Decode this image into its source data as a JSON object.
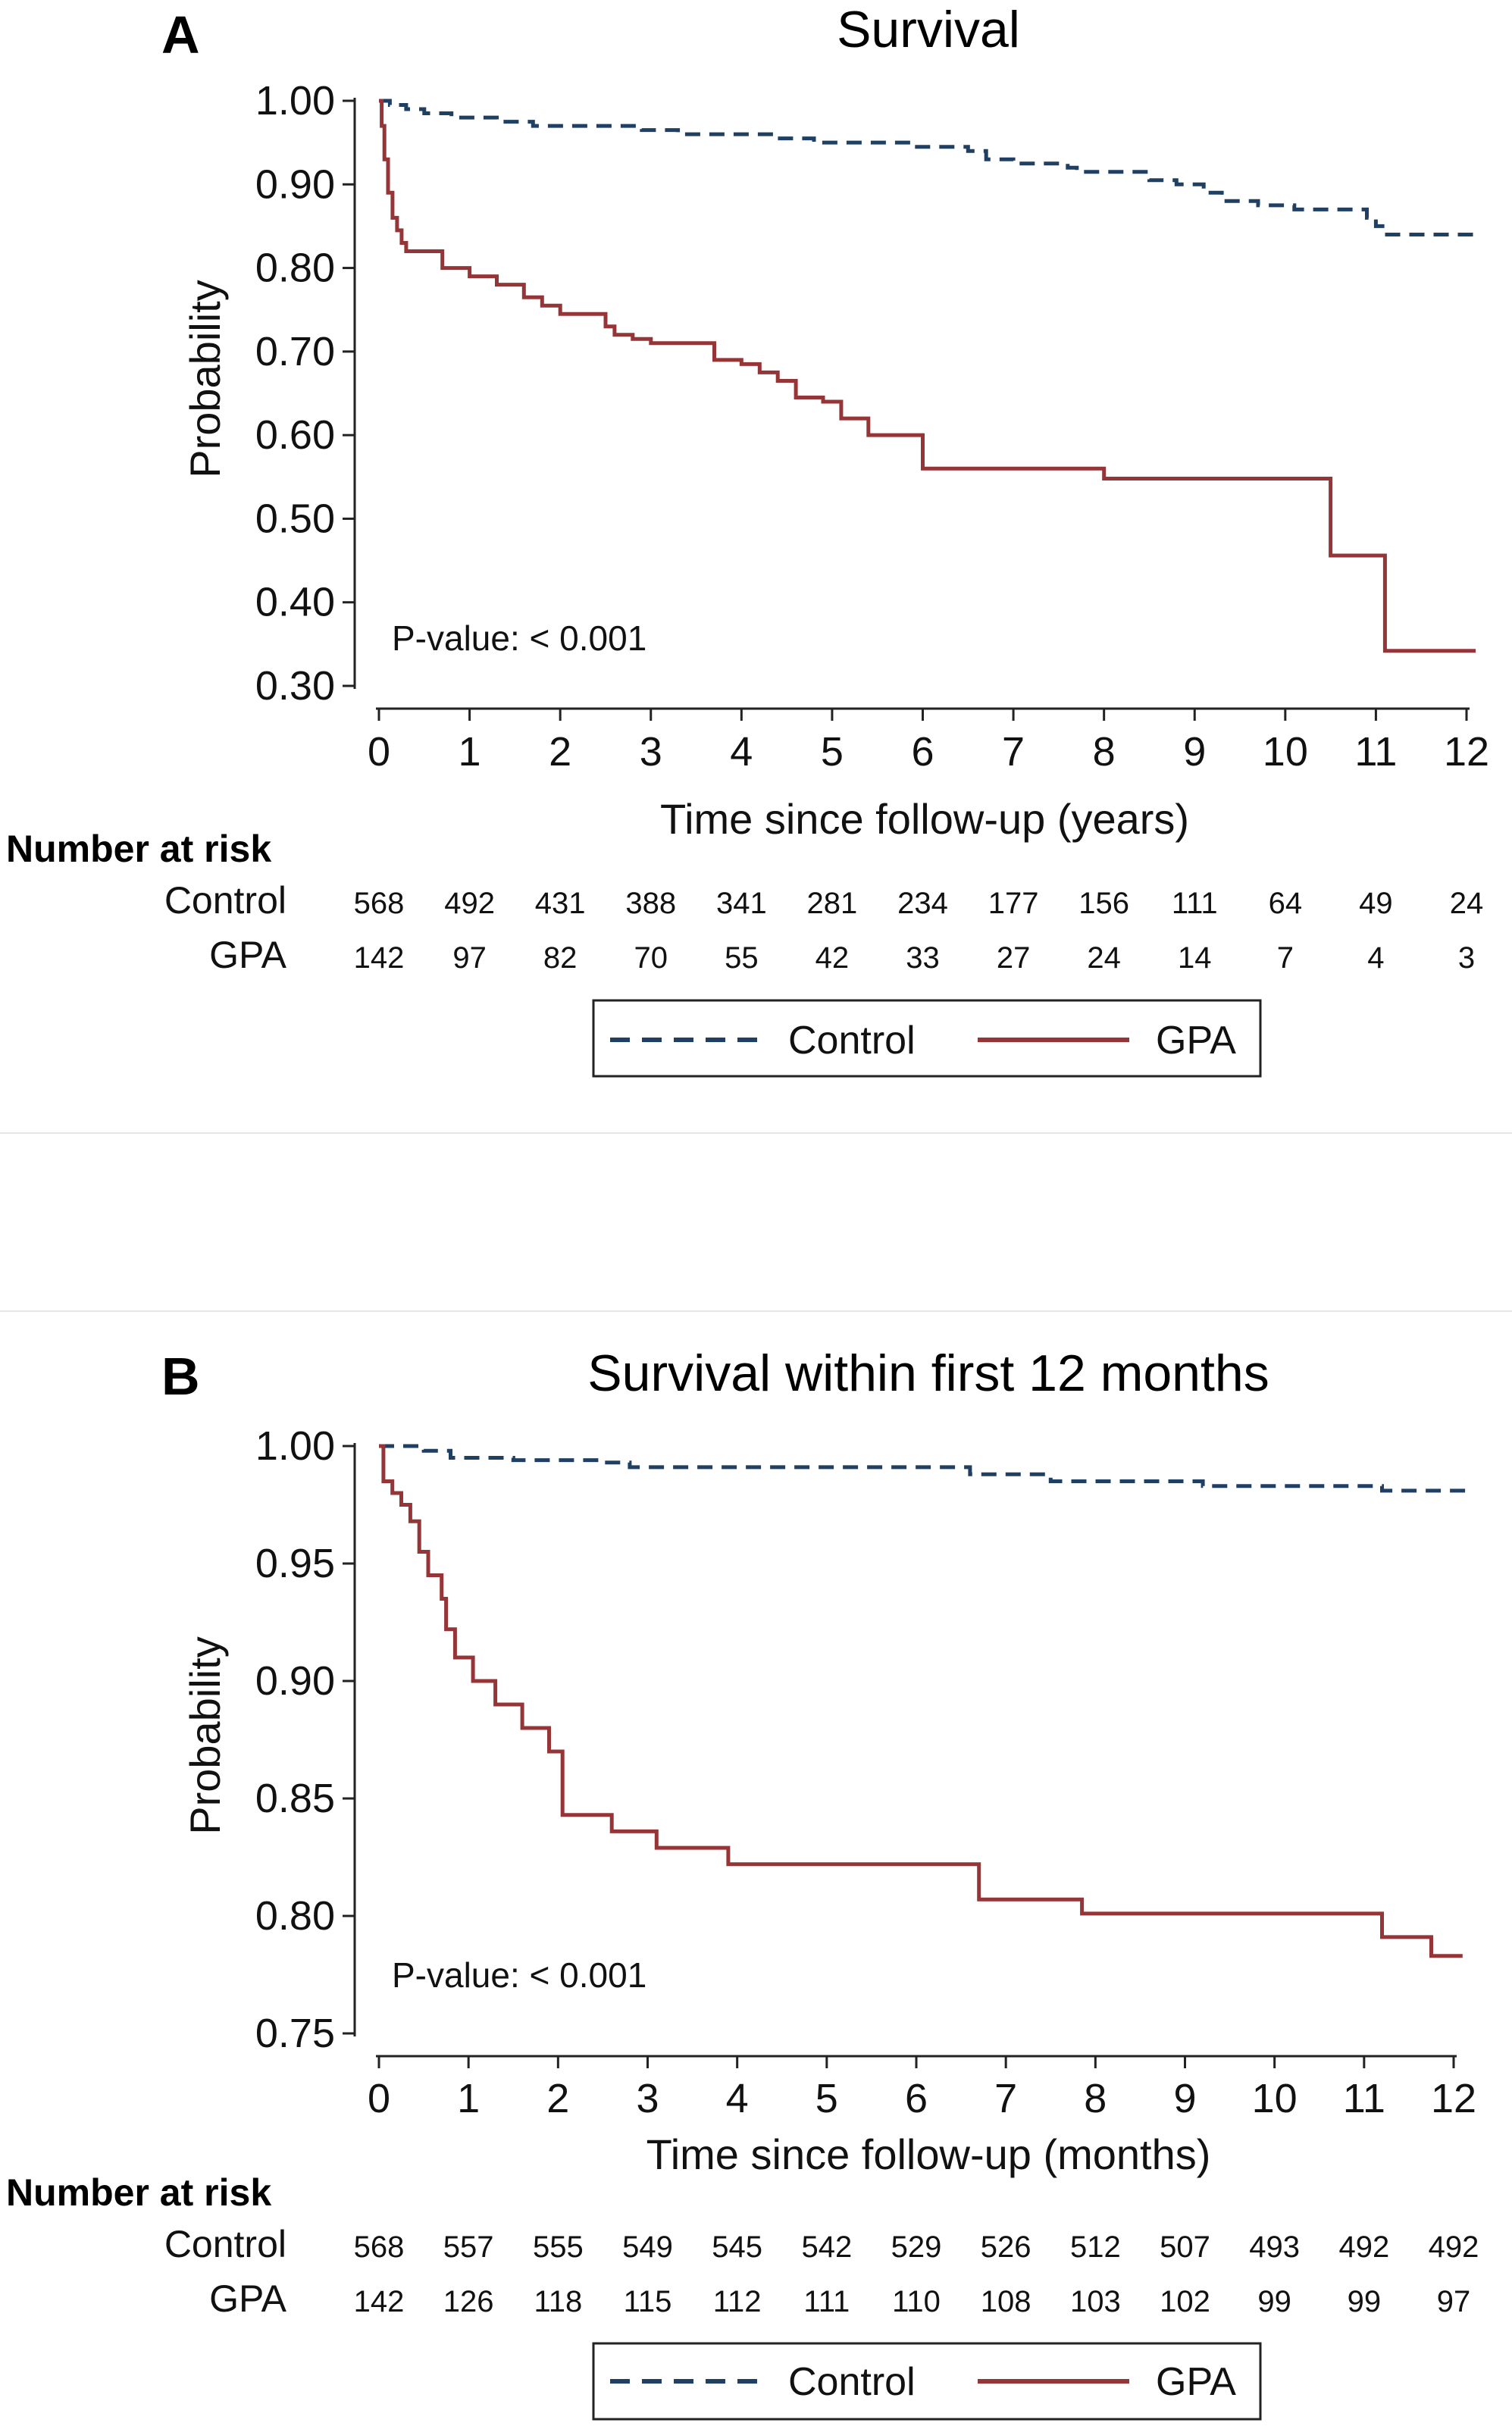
{
  "chart_data": [
    {
      "panel": "A",
      "type": "line",
      "title": "Survival",
      "xlabel": "Time since follow-up (years)",
      "ylabel": "Probability",
      "xlim": [
        0,
        12
      ],
      "ylim": [
        0.3,
        1.0
      ],
      "x_ticks": [
        "0",
        "1",
        "2",
        "3",
        "4",
        "5",
        "6",
        "7",
        "8",
        "9",
        "10",
        "11",
        "12"
      ],
      "y_ticks": [
        "0.30",
        "0.40",
        "0.50",
        "0.60",
        "0.70",
        "0.80",
        "0.90",
        "1.00"
      ],
      "annotation": "P-value: < 0.001",
      "legend": [
        "Control",
        "GPA"
      ],
      "legend_position": "bottom",
      "series": [
        {
          "name": "Control",
          "color": "#1f3f63",
          "style": "dashed",
          "x": [
            0,
            0.12,
            0.3,
            0.5,
            0.8,
            1.3,
            1.7,
            2.0,
            2.9,
            3.3,
            3.7,
            4.4,
            4.8,
            5.2,
            5.9,
            6.5,
            6.7,
            7.0,
            7.6,
            7.7,
            8.5,
            8.8,
            9.1,
            9.3,
            9.7,
            10.1,
            10.2,
            10.6,
            10.9,
            11.0,
            11.1,
            12.1
          ],
          "y": [
            1.0,
            0.995,
            0.99,
            0.985,
            0.98,
            0.975,
            0.97,
            0.97,
            0.965,
            0.96,
            0.96,
            0.955,
            0.95,
            0.95,
            0.945,
            0.94,
            0.93,
            0.925,
            0.92,
            0.915,
            0.905,
            0.9,
            0.89,
            0.88,
            0.875,
            0.87,
            0.87,
            0.87,
            0.86,
            0.85,
            0.84,
            0.84
          ]
        },
        {
          "name": "GPA",
          "color": "#963538",
          "style": "solid",
          "x": [
            0,
            0.03,
            0.06,
            0.1,
            0.15,
            0.2,
            0.25,
            0.3,
            0.4,
            0.5,
            0.7,
            1.0,
            1.3,
            1.6,
            1.8,
            2.0,
            2.5,
            2.6,
            2.8,
            3.0,
            3.6,
            3.7,
            4.0,
            4.2,
            4.4,
            4.6,
            4.9,
            5.1,
            5.4,
            6.0,
            8.0,
            10.5,
            11.0,
            11.1,
            12.1
          ],
          "y": [
            1.0,
            0.97,
            0.93,
            0.89,
            0.86,
            0.845,
            0.83,
            0.82,
            0.82,
            0.82,
            0.8,
            0.79,
            0.78,
            0.765,
            0.755,
            0.745,
            0.73,
            0.72,
            0.715,
            0.71,
            0.71,
            0.69,
            0.685,
            0.675,
            0.665,
            0.645,
            0.64,
            0.62,
            0.6,
            0.56,
            0.548,
            0.456,
            0.456,
            0.342,
            0.342
          ]
        }
      ],
      "risk_table": {
        "header": "Number at risk",
        "rows": [
          {
            "label": "Control",
            "values": [
              "568",
              "492",
              "431",
              "388",
              "341",
              "281",
              "234",
              "177",
              "156",
              "111",
              "64",
              "49",
              "24"
            ]
          },
          {
            "label": "GPA",
            "values": [
              "142",
              "97",
              "82",
              "70",
              "55",
              "42",
              "33",
              "27",
              "24",
              "14",
              "7",
              "4",
              "3"
            ]
          }
        ]
      }
    },
    {
      "panel": "B",
      "type": "line",
      "title": "Survival within first 12 months",
      "xlabel": "Time since follow-up (months)",
      "ylabel": "Probability",
      "xlim": [
        0,
        12
      ],
      "ylim": [
        0.75,
        1.0
      ],
      "x_ticks": [
        "0",
        "1",
        "2",
        "3",
        "4",
        "5",
        "6",
        "7",
        "8",
        "9",
        "10",
        "11",
        "12"
      ],
      "y_ticks": [
        "0.75",
        "0.80",
        "0.85",
        "0.90",
        "0.95",
        "1.00"
      ],
      "annotation": "P-value: < 0.001",
      "legend": [
        "Control",
        "GPA"
      ],
      "legend_position": "bottom",
      "series": [
        {
          "name": "Control",
          "color": "#1f3f63",
          "style": "dashed",
          "x": [
            0,
            0.5,
            0.8,
            1.5,
            2.5,
            2.8,
            6.6,
            7.5,
            9.2,
            11.2,
            12.2
          ],
          "y": [
            1.0,
            0.998,
            0.995,
            0.994,
            0.993,
            0.991,
            0.988,
            0.985,
            0.983,
            0.981,
            0.981
          ],
          "end_x": 12.2
        },
        {
          "name": "GPA",
          "color": "#963538",
          "style": "solid",
          "x": [
            0,
            0.05,
            0.15,
            0.25,
            0.35,
            0.45,
            0.55,
            0.7,
            0.75,
            0.85,
            1.05,
            1.3,
            1.6,
            1.9,
            2.05,
            2.6,
            3.1,
            3.9,
            6.7,
            7.85,
            11.2,
            11.75,
            12.1
          ],
          "y": [
            1.0,
            0.985,
            0.98,
            0.975,
            0.968,
            0.955,
            0.945,
            0.935,
            0.922,
            0.91,
            0.9,
            0.89,
            0.88,
            0.87,
            0.843,
            0.836,
            0.829,
            0.822,
            0.807,
            0.801,
            0.791,
            0.783,
            0.783
          ]
        }
      ],
      "risk_table": {
        "header": "Number at risk",
        "rows": [
          {
            "label": "Control",
            "values": [
              "568",
              "557",
              "555",
              "549",
              "545",
              "542",
              "529",
              "526",
              "512",
              "507",
              "493",
              "492",
              "492"
            ]
          },
          {
            "label": "GPA",
            "values": [
              "142",
              "126",
              "118",
              "115",
              "112",
              "111",
              "110",
              "108",
              "103",
              "102",
              "99",
              "99",
              "97"
            ]
          }
        ]
      }
    }
  ]
}
